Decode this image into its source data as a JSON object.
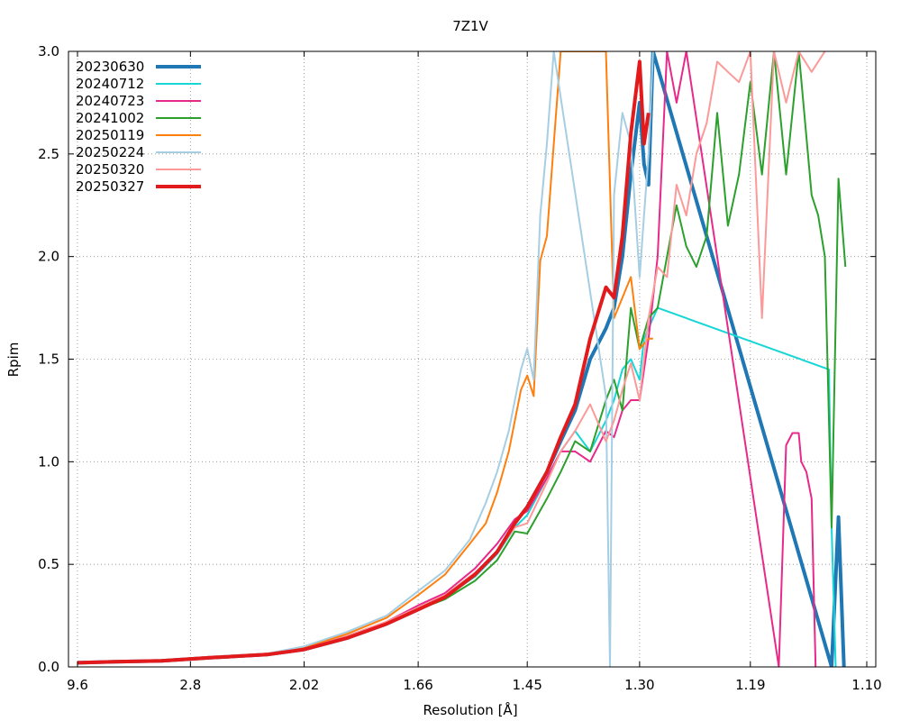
{
  "chart_data": {
    "type": "line",
    "title": "7Z1V",
    "xlabel": "Resolution [Å]",
    "ylabel": "Rpim",
    "x_scale": "reciprocal-squared",
    "x_ticks": [
      "9.6",
      "2.8",
      "2.02",
      "1.66",
      "1.45",
      "1.30",
      "1.19",
      "1.10"
    ],
    "y_ticks": [
      "0.0",
      "0.5",
      "1.0",
      "1.5",
      "2.0",
      "2.5",
      "3.0"
    ],
    "ylim": [
      0,
      3.0
    ],
    "grid": true,
    "legend_position": "top-left",
    "series": [
      {
        "name": "20230630",
        "color": "#1f77b4",
        "width": 4,
        "x": [
          9.6,
          4.5,
          3.2,
          2.6,
          2.2,
          2.02,
          1.86,
          1.74,
          1.66,
          1.6,
          1.54,
          1.5,
          1.47,
          1.45,
          1.42,
          1.4,
          1.38,
          1.36,
          1.34,
          1.33,
          1.32,
          1.31,
          1.3,
          1.295,
          1.29,
          1.285,
          1.125,
          1.12,
          1.116
        ],
        "y": [
          0.02,
          0.025,
          0.03,
          0.045,
          0.06,
          0.085,
          0.14,
          0.21,
          0.28,
          0.34,
          0.45,
          0.56,
          0.7,
          0.78,
          0.95,
          1.1,
          1.25,
          1.5,
          1.65,
          1.75,
          2.0,
          2.4,
          2.75,
          2.45,
          2.35,
          3.0,
          0.0,
          0.73,
          0.0
        ]
      },
      {
        "name": "20240712",
        "color": "#17d6d6",
        "width": 2,
        "x": [
          9.6,
          4.5,
          3.2,
          2.6,
          2.2,
          2.02,
          1.86,
          1.74,
          1.66,
          1.6,
          1.54,
          1.5,
          1.47,
          1.45,
          1.42,
          1.4,
          1.38,
          1.36,
          1.34,
          1.33,
          1.32,
          1.31,
          1.3,
          1.295,
          1.29,
          1.28,
          1.127,
          1.125,
          1.122
        ],
        "y": [
          0.02,
          0.025,
          0.03,
          0.045,
          0.06,
          0.085,
          0.14,
          0.21,
          0.28,
          0.34,
          0.44,
          0.55,
          0.68,
          0.74,
          0.92,
          1.05,
          1.15,
          1.05,
          1.2,
          1.3,
          1.45,
          1.5,
          1.4,
          1.6,
          1.65,
          1.75,
          1.45,
          0.68,
          0.0
        ]
      },
      {
        "name": "20240723",
        "color": "#e7298a",
        "width": 2,
        "x": [
          9.6,
          4.5,
          3.2,
          2.6,
          2.2,
          2.02,
          1.86,
          1.74,
          1.66,
          1.6,
          1.54,
          1.5,
          1.47,
          1.45,
          1.42,
          1.4,
          1.38,
          1.36,
          1.34,
          1.33,
          1.32,
          1.31,
          1.3,
          1.29,
          1.28,
          1.27,
          1.26,
          1.25,
          1.166,
          1.16,
          1.155,
          1.15,
          1.148,
          1.144,
          1.14,
          1.137
        ],
        "y": [
          0.02,
          0.025,
          0.03,
          0.045,
          0.065,
          0.09,
          0.15,
          0.22,
          0.3,
          0.36,
          0.48,
          0.6,
          0.72,
          0.76,
          0.92,
          1.05,
          1.05,
          1.0,
          1.15,
          1.12,
          1.25,
          1.3,
          1.3,
          1.6,
          2.0,
          3.0,
          2.75,
          3.0,
          0.0,
          1.08,
          1.14,
          1.14,
          1.0,
          0.95,
          0.82,
          0.0
        ]
      },
      {
        "name": "20241002",
        "color": "#2ca02c",
        "width": 2,
        "x": [
          9.6,
          4.5,
          3.2,
          2.6,
          2.2,
          2.02,
          1.86,
          1.74,
          1.66,
          1.6,
          1.54,
          1.5,
          1.47,
          1.45,
          1.42,
          1.4,
          1.38,
          1.36,
          1.34,
          1.33,
          1.32,
          1.31,
          1.3,
          1.29,
          1.28,
          1.27,
          1.26,
          1.25,
          1.24,
          1.23,
          1.22,
          1.21,
          1.2,
          1.19,
          1.18,
          1.17,
          1.16,
          1.15,
          1.14,
          1.135,
          1.13,
          1.125,
          1.12,
          1.115
        ],
        "y": [
          0.02,
          0.025,
          0.03,
          0.045,
          0.06,
          0.085,
          0.14,
          0.21,
          0.28,
          0.33,
          0.42,
          0.52,
          0.66,
          0.65,
          0.82,
          0.95,
          1.1,
          1.05,
          1.3,
          1.4,
          1.25,
          1.75,
          1.55,
          1.7,
          1.75,
          2.0,
          2.25,
          2.05,
          1.95,
          2.1,
          2.7,
          2.15,
          2.4,
          2.85,
          2.4,
          3.0,
          2.4,
          3.0,
          2.3,
          2.2,
          2.0,
          0.68,
          2.38,
          1.95
        ]
      },
      {
        "name": "20250119",
        "color": "#ff7f0e",
        "width": 2,
        "x": [
          9.6,
          4.5,
          3.2,
          2.6,
          2.2,
          2.02,
          1.86,
          1.74,
          1.66,
          1.6,
          1.55,
          1.52,
          1.5,
          1.48,
          1.46,
          1.45,
          1.44,
          1.43,
          1.42,
          1.4,
          1.34,
          1.33,
          1.32,
          1.31,
          1.3,
          1.29,
          1.285
        ],
        "y": [
          0.02,
          0.025,
          0.03,
          0.05,
          0.065,
          0.095,
          0.16,
          0.24,
          0.35,
          0.45,
          0.6,
          0.7,
          0.85,
          1.05,
          1.35,
          1.42,
          1.32,
          1.98,
          2.1,
          3.0,
          3.0,
          1.7,
          1.8,
          1.9,
          1.55,
          1.6,
          1.6
        ]
      },
      {
        "name": "20250224",
        "color": "#a6cee3",
        "width": 2,
        "x": [
          9.6,
          4.5,
          3.2,
          2.6,
          2.2,
          2.02,
          1.86,
          1.74,
          1.66,
          1.6,
          1.55,
          1.52,
          1.5,
          1.48,
          1.46,
          1.45,
          1.44,
          1.43,
          1.42,
          1.41,
          1.34,
          1.335,
          1.33,
          1.32,
          1.31,
          1.3,
          1.295,
          1.29,
          1.285
        ],
        "y": [
          0.02,
          0.025,
          0.03,
          0.05,
          0.065,
          0.1,
          0.17,
          0.25,
          0.37,
          0.47,
          0.62,
          0.8,
          0.95,
          1.15,
          1.45,
          1.55,
          1.4,
          2.2,
          2.55,
          3.0,
          1.32,
          0.0,
          2.3,
          2.7,
          2.55,
          1.9,
          2.2,
          2.5,
          3.0
        ]
      },
      {
        "name": "20250320",
        "color": "#fb9a99",
        "width": 2,
        "x": [
          9.6,
          4.5,
          3.2,
          2.6,
          2.2,
          2.02,
          1.86,
          1.74,
          1.66,
          1.6,
          1.54,
          1.5,
          1.47,
          1.45,
          1.42,
          1.4,
          1.38,
          1.36,
          1.34,
          1.33,
          1.32,
          1.31,
          1.3,
          1.29,
          1.28,
          1.27,
          1.26,
          1.25,
          1.24,
          1.23,
          1.22,
          1.21,
          1.2,
          1.19,
          1.18,
          1.17,
          1.16,
          1.15,
          1.14,
          1.13
        ],
        "y": [
          0.02,
          0.025,
          0.03,
          0.045,
          0.062,
          0.088,
          0.15,
          0.22,
          0.29,
          0.35,
          0.46,
          0.56,
          0.68,
          0.7,
          0.9,
          1.05,
          1.15,
          1.28,
          1.1,
          1.2,
          1.35,
          1.48,
          1.3,
          1.7,
          1.95,
          1.9,
          2.35,
          2.2,
          2.5,
          2.65,
          2.95,
          2.9,
          2.85,
          3.0,
          1.7,
          3.0,
          2.75,
          3.0,
          2.9,
          3.0
        ]
      },
      {
        "name": "20250327",
        "color": "#e31a1c",
        "width": 4,
        "x": [
          9.6,
          4.5,
          3.2,
          2.6,
          2.2,
          2.02,
          1.86,
          1.74,
          1.66,
          1.6,
          1.54,
          1.5,
          1.47,
          1.45,
          1.42,
          1.4,
          1.38,
          1.36,
          1.34,
          1.33,
          1.32,
          1.31,
          1.3,
          1.295,
          1.29
        ],
        "y": [
          0.02,
          0.025,
          0.03,
          0.045,
          0.06,
          0.085,
          0.14,
          0.21,
          0.28,
          0.34,
          0.45,
          0.56,
          0.7,
          0.78,
          0.95,
          1.12,
          1.28,
          1.6,
          1.85,
          1.8,
          2.1,
          2.6,
          2.95,
          2.55,
          2.7
        ]
      }
    ]
  }
}
